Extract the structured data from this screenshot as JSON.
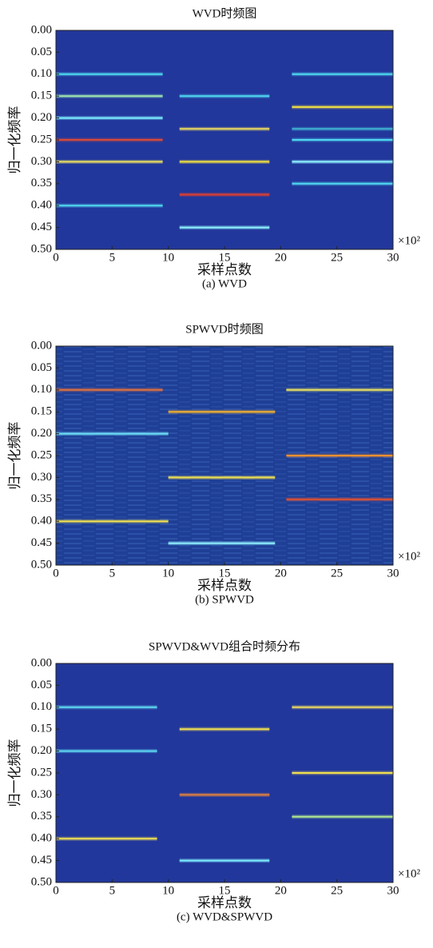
{
  "chart_data": [
    {
      "type": "segments",
      "title": "WVD时频图",
      "caption": "(a) WVD",
      "xlabel": "采样点数",
      "ylabel": "归一化频率",
      "x_multiplier": "×10²",
      "background": "#22379b",
      "xlim": [
        0,
        30
      ],
      "ylim": [
        0.5,
        0
      ],
      "xticks": [
        0,
        5,
        10,
        15,
        20,
        25,
        30
      ],
      "yticks": [
        {
          "value": 0,
          "label": "0.00"
        },
        {
          "value": 0.05,
          "label": "0.05"
        },
        {
          "value": 0.1,
          "label": "0.10"
        },
        {
          "value": 0.15,
          "label": "0.15"
        },
        {
          "value": 0.2,
          "label": "0.20"
        },
        {
          "value": 0.25,
          "label": "0.25"
        },
        {
          "value": 0.3,
          "label": "0.30"
        },
        {
          "value": 0.35,
          "label": "0.35"
        },
        {
          "value": 0.4,
          "label": "0.40"
        },
        {
          "value": 0.45,
          "label": "0.45"
        },
        {
          "value": 0.5,
          "label": "0.50"
        }
      ],
      "segments": [
        {
          "x": [
            0,
            9.5
          ],
          "y": 0.1,
          "color": "#4fd8f0"
        },
        {
          "x": [
            0,
            9.5
          ],
          "y": 0.15,
          "color": "#9fe8b0"
        },
        {
          "x": [
            0,
            9.5
          ],
          "y": 0.2,
          "color": "#7ef0ff"
        },
        {
          "x": [
            0,
            9.5
          ],
          "y": 0.25,
          "color": "#d84a3a"
        },
        {
          "x": [
            0,
            9.5
          ],
          "y": 0.3,
          "color": "#e8e060"
        },
        {
          "x": [
            0,
            9.5
          ],
          "y": 0.4,
          "color": "#4fd8f0"
        },
        {
          "x": [
            11,
            19
          ],
          "y": 0.15,
          "color": "#4fd8f0"
        },
        {
          "x": [
            11,
            19
          ],
          "y": 0.225,
          "color": "#e8d860"
        },
        {
          "x": [
            11,
            19
          ],
          "y": 0.3,
          "color": "#f0e040"
        },
        {
          "x": [
            11,
            19
          ],
          "y": 0.375,
          "color": "#e04030"
        },
        {
          "x": [
            11,
            19
          ],
          "y": 0.45,
          "color": "#8ff4ff"
        },
        {
          "x": [
            21,
            30
          ],
          "y": 0.1,
          "color": "#4fd8f0"
        },
        {
          "x": [
            21,
            30
          ],
          "y": 0.175,
          "color": "#f0e040"
        },
        {
          "x": [
            21,
            30
          ],
          "y": 0.225,
          "color": "#3fb0d0"
        },
        {
          "x": [
            21,
            30
          ],
          "y": 0.25,
          "color": "#4fd8f0"
        },
        {
          "x": [
            21,
            30
          ],
          "y": 0.3,
          "color": "#8ff4ff"
        },
        {
          "x": [
            21,
            30
          ],
          "y": 0.35,
          "color": "#4fd8f0"
        }
      ]
    },
    {
      "type": "segments",
      "title": "SPWVD时频图",
      "caption": "(b) SPWVD",
      "xlabel": "采样点数",
      "ylabel": "归一化频率",
      "x_multiplier": "×10²",
      "background": "#1f3f96",
      "xlim": [
        0,
        30
      ],
      "ylim": [
        0.5,
        0
      ],
      "xticks": [
        0,
        5,
        10,
        15,
        20,
        25,
        30
      ],
      "yticks": [
        {
          "value": 0,
          "label": "0.00"
        },
        {
          "value": 0.05,
          "label": "0.05"
        },
        {
          "value": 0.1,
          "label": "0.10"
        },
        {
          "value": 0.15,
          "label": "0.15"
        },
        {
          "value": 0.2,
          "label": "0.20"
        },
        {
          "value": 0.25,
          "label": "0.25"
        },
        {
          "value": 0.3,
          "label": "0.30"
        },
        {
          "value": 0.35,
          "label": "0.35"
        },
        {
          "value": 0.4,
          "label": "0.40"
        },
        {
          "value": 0.45,
          "label": "0.45"
        },
        {
          "value": 0.5,
          "label": "0.50"
        }
      ],
      "segments": [
        {
          "x": [
            0,
            9.5
          ],
          "y": 0.1,
          "color": "#e07040"
        },
        {
          "x": [
            0,
            10
          ],
          "y": 0.2,
          "color": "#6fe0f8"
        },
        {
          "x": [
            0,
            10
          ],
          "y": 0.4,
          "color": "#f0e050"
        },
        {
          "x": [
            10,
            19.5
          ],
          "y": 0.15,
          "color": "#f0b030"
        },
        {
          "x": [
            10,
            19.5
          ],
          "y": 0.3,
          "color": "#f0e050"
        },
        {
          "x": [
            10,
            19.5
          ],
          "y": 0.45,
          "color": "#8ff0ff"
        },
        {
          "x": [
            20.5,
            30
          ],
          "y": 0.1,
          "color": "#e8e060"
        },
        {
          "x": [
            20.5,
            30
          ],
          "y": 0.25,
          "color": "#f09030"
        },
        {
          "x": [
            20.5,
            30
          ],
          "y": 0.35,
          "color": "#e05030"
        }
      ]
    },
    {
      "type": "segments",
      "title": "SPWVD&WVD组合时频分布",
      "caption": "(c) WVD&SPWVD",
      "xlabel": "采样点数",
      "ylabel": "归一化频率",
      "x_multiplier": "×10²",
      "background": "#22379b",
      "xlim": [
        0,
        30
      ],
      "ylim": [
        0.5,
        0
      ],
      "xticks": [
        0,
        5,
        10,
        15,
        20,
        25,
        30
      ],
      "yticks": [
        {
          "value": 0,
          "label": "0.00"
        },
        {
          "value": 0.05,
          "label": "0.05"
        },
        {
          "value": 0.1,
          "label": "0.10"
        },
        {
          "value": 0.15,
          "label": "0.15"
        },
        {
          "value": 0.2,
          "label": "0.20"
        },
        {
          "value": 0.25,
          "label": "0.25"
        },
        {
          "value": 0.3,
          "label": "0.30"
        },
        {
          "value": 0.35,
          "label": "0.35"
        },
        {
          "value": 0.4,
          "label": "0.40"
        },
        {
          "value": 0.45,
          "label": "0.45"
        },
        {
          "value": 0.5,
          "label": "0.50"
        }
      ],
      "segments": [
        {
          "x": [
            0,
            9
          ],
          "y": 0.1,
          "color": "#5fd8f0"
        },
        {
          "x": [
            0,
            9
          ],
          "y": 0.2,
          "color": "#5fd8f0"
        },
        {
          "x": [
            0,
            9
          ],
          "y": 0.4,
          "color": "#f0e050"
        },
        {
          "x": [
            11,
            19
          ],
          "y": 0.15,
          "color": "#f0e050"
        },
        {
          "x": [
            11,
            19
          ],
          "y": 0.3,
          "color": "#e08040"
        },
        {
          "x": [
            11,
            19
          ],
          "y": 0.45,
          "color": "#7ff0ff"
        },
        {
          "x": [
            21,
            30
          ],
          "y": 0.1,
          "color": "#e8d860"
        },
        {
          "x": [
            21,
            30
          ],
          "y": 0.25,
          "color": "#f0e050"
        },
        {
          "x": [
            21,
            30
          ],
          "y": 0.35,
          "color": "#b0e890"
        }
      ]
    }
  ]
}
